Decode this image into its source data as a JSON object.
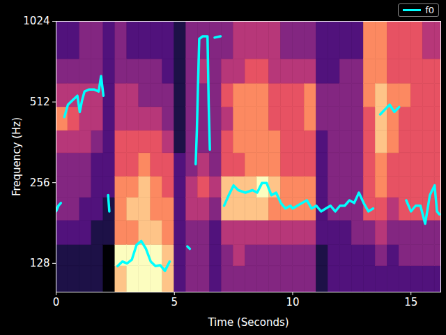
{
  "chart_data": {
    "type": "heatmap",
    "x_label": "Time (Seconds)",
    "y_label": "Frequency (Hz)",
    "xlim": [
      0,
      16.26
    ],
    "xticks": [
      0,
      5,
      10,
      15
    ],
    "ylim": [
      100,
      1024
    ],
    "yticks": [
      128,
      256,
      512,
      1024
    ],
    "log": "y",
    "legend": "upper right",
    "cells": {
      "time_edges": [
        0,
        0.5,
        1,
        1.5,
        2,
        2.5,
        3,
        3.5,
        4,
        4.5,
        5,
        5.5,
        6,
        6.5,
        7,
        7.5,
        8,
        8.5,
        9,
        9.5,
        10,
        10.5,
        11,
        11.5,
        12,
        12.5,
        13,
        13.5,
        14,
        14.5,
        15,
        15.5,
        16,
        16.26
      ],
      "freq_edges": [
        100,
        125,
        150,
        185,
        225,
        270,
        330,
        400,
        490,
        600,
        740,
        1024
      ],
      "values": [
        [
          1,
          1,
          2,
          3,
          3,
          3,
          4,
          6,
          4,
          3,
          2
        ],
        [
          1,
          1,
          2,
          3,
          3,
          3,
          4,
          5,
          4,
          3,
          2
        ],
        [
          1,
          1,
          2,
          2,
          3,
          3,
          4,
          4,
          4,
          3,
          3
        ],
        [
          1,
          1,
          1,
          2,
          2,
          2,
          3,
          4,
          4,
          3,
          3
        ],
        [
          0,
          0,
          1,
          1,
          2,
          2,
          2,
          2,
          2,
          2,
          2
        ],
        [
          7,
          8,
          6,
          6,
          6,
          5,
          5,
          4,
          4,
          3,
          3
        ],
        [
          8,
          8,
          6,
          7,
          6,
          5,
          5,
          4,
          4,
          3,
          2
        ],
        [
          8,
          8,
          7,
          7,
          7,
          6,
          5,
          4,
          3,
          3,
          2
        ],
        [
          8,
          8,
          7,
          6,
          6,
          5,
          5,
          4,
          3,
          3,
          2
        ],
        [
          7,
          7,
          6,
          6,
          5,
          5,
          4,
          3,
          3,
          2,
          2
        ],
        [
          2,
          2,
          2,
          2,
          2,
          2,
          1,
          1,
          1,
          1,
          1
        ],
        [
          3,
          3,
          3,
          4,
          4,
          3,
          3,
          3,
          3,
          3,
          3
        ],
        [
          3,
          3,
          3,
          4,
          5,
          4,
          3,
          3,
          3,
          4,
          3
        ],
        [
          2,
          2,
          2,
          3,
          4,
          3,
          3,
          3,
          3,
          3,
          3
        ],
        [
          3,
          3,
          4,
          7,
          7,
          5,
          5,
          4,
          5,
          4,
          3
        ],
        [
          3,
          4,
          4,
          7,
          7,
          5,
          6,
          6,
          6,
          4,
          4
        ],
        [
          3,
          3,
          4,
          7,
          7,
          6,
          6,
          6,
          6,
          5,
          4
        ],
        [
          3,
          3,
          4,
          7,
          8,
          6,
          6,
          6,
          6,
          5,
          4
        ],
        [
          3,
          3,
          4,
          6,
          7,
          6,
          6,
          5,
          5,
          4,
          4
        ],
        [
          3,
          3,
          4,
          6,
          6,
          5,
          5,
          5,
          5,
          4,
          3
        ],
        [
          3,
          3,
          4,
          6,
          6,
          5,
          5,
          5,
          5,
          4,
          3
        ],
        [
          3,
          3,
          4,
          6,
          6,
          5,
          5,
          6,
          6,
          4,
          3
        ],
        [
          1,
          1,
          2,
          2,
          2,
          2,
          2,
          3,
          3,
          2,
          2
        ],
        [
          2,
          2,
          2,
          3,
          3,
          3,
          3,
          3,
          3,
          2,
          2
        ],
        [
          2,
          2,
          2,
          3,
          3,
          3,
          3,
          3,
          3,
          3,
          2
        ],
        [
          2,
          2,
          3,
          3,
          3,
          3,
          3,
          3,
          3,
          3,
          2
        ],
        [
          2,
          2,
          3,
          5,
          5,
          5,
          5,
          5,
          6,
          6,
          6
        ],
        [
          2,
          3,
          4,
          5,
          6,
          6,
          7,
          7,
          7,
          6,
          6
        ],
        [
          2,
          2,
          3,
          4,
          5,
          5,
          6,
          6,
          6,
          5,
          5
        ],
        [
          2,
          3,
          3,
          5,
          5,
          5,
          5,
          5,
          6,
          5,
          5
        ],
        [
          2,
          3,
          3,
          5,
          5,
          5,
          5,
          5,
          5,
          5,
          5
        ],
        [
          2,
          3,
          3,
          5,
          5,
          5,
          5,
          5,
          5,
          5,
          4
        ],
        [
          2,
          3,
          3,
          5,
          5,
          5,
          5,
          5,
          5,
          5,
          4
        ]
      ]
    },
    "x": [
      0.0,
      0.1,
      0.2,
      0.3,
      0.35,
      0.5,
      0.7,
      0.9,
      1.0,
      1.1,
      1.2,
      1.4,
      1.6,
      1.8,
      1.9,
      2.0,
      2.1,
      2.2,
      2.25,
      2.3,
      2.6,
      2.8,
      3.0,
      3.2,
      3.4,
      3.6,
      3.8,
      4.0,
      4.2,
      4.4,
      4.6,
      4.8,
      4.9,
      5.55,
      5.65,
      5.7,
      5.9,
      5.95,
      6.0,
      6.05,
      6.2,
      6.4,
      6.45,
      6.5,
      6.6,
      6.7,
      6.95,
      7.0,
      7.1,
      7.3,
      7.5,
      7.7,
      8.0,
      8.3,
      8.5,
      8.7,
      8.9,
      9.1,
      9.3,
      9.5,
      9.7,
      9.9,
      10.0,
      10.2,
      10.4,
      10.6,
      10.8,
      11.0,
      11.2,
      11.4,
      11.6,
      11.8,
      12.0,
      12.2,
      12.4,
      12.6,
      12.8,
      13.0,
      13.2,
      13.4,
      13.6,
      13.7,
      13.9,
      14.1,
      14.3,
      14.5,
      14.6,
      14.8,
      15.0,
      15.2,
      15.4,
      15.6,
      15.8,
      16.0,
      16.1,
      16.2
    ],
    "series": [
      {
        "name": "f0",
        "color": "#00ffff",
        "type": "line",
        "values": [
          200,
          210,
          215,
          null,
          450,
          500,
          520,
          540,
          470,
          520,
          560,
          570,
          570,
          560,
          640,
          540,
          null,
          230,
          200,
          null,
          125,
          130,
          128,
          132,
          150,
          155,
          145,
          130,
          125,
          126,
          120,
          130,
          null,
          148,
          145,
          null,
          300,
          400,
          600,
          880,
          900,
          900,
          500,
          340,
          null,
          890,
          900,
          null,
          210,
          230,
          250,
          240,
          235,
          240,
          235,
          255,
          255,
          230,
          235,
          215,
          205,
          210,
          205,
          210,
          215,
          220,
          205,
          210,
          200,
          205,
          210,
          200,
          210,
          210,
          220,
          215,
          235,
          215,
          200,
          205,
          null,
          460,
          480,
          500,
          470,
          490,
          null,
          220,
          200,
          210,
          210,
          180,
          230,
          250,
          200,
          195
        ]
      }
    ]
  }
}
